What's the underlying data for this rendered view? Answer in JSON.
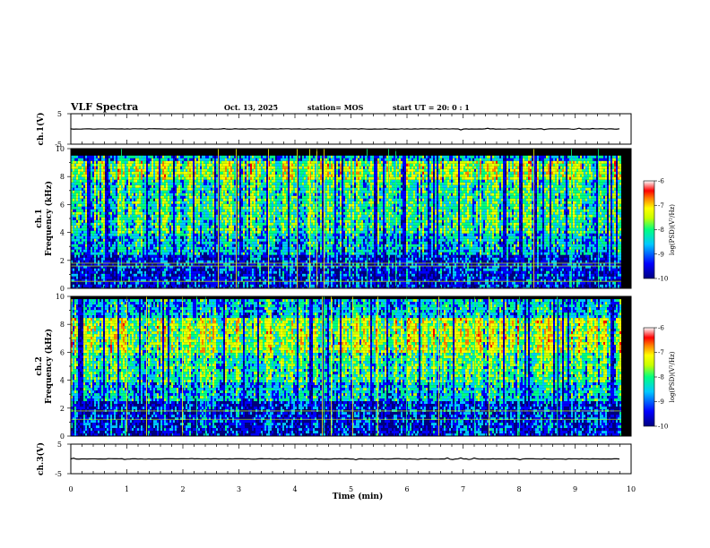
{
  "header": {
    "title": "VLF Spectra",
    "date": "Oct. 13, 2025",
    "station": "station= MOS",
    "start_ut": "start  UT  =   20: 0   : 1"
  },
  "chart_data": [
    {
      "type": "line",
      "panel": "ch1-voltage",
      "ylabel": "ch.1(V)",
      "ylim": [
        -5,
        5
      ],
      "yticks": [
        "5",
        "-5"
      ],
      "xlim": [
        0,
        10
      ],
      "level": 0,
      "series": [
        {
          "name": "ch.1",
          "x": [
            0,
            9.82
          ],
          "y": [
            0,
            0
          ]
        }
      ]
    },
    {
      "type": "heatmap",
      "panel": "ch1-spectrogram",
      "ylabel_line1": "ch.1",
      "ylabel_line2": "Frequency  (kHz)",
      "ylim": [
        0,
        10
      ],
      "yticks": [
        "10",
        "8",
        "6",
        "4",
        "2",
        "0"
      ],
      "xlim": [
        0,
        10
      ],
      "data_end_min": 9.82,
      "colorbar": {
        "label": "log(PSD)(V²/Hz)",
        "ticks": [
          "-6",
          "-7",
          "-8",
          "-9",
          "-10"
        ],
        "range": [
          -10,
          -6
        ]
      },
      "features": {
        "bright_band_khz": [
          7.8,
          9.2
        ],
        "cutoff_khz": 9.5,
        "horizontal_lines_khz": [
          0.5,
          1.6,
          1.8
        ]
      }
    },
    {
      "type": "heatmap",
      "panel": "ch2-spectrogram",
      "ylabel_line1": "ch.2",
      "ylabel_line2": "Frequency  (kHz)",
      "ylim": [
        0,
        10
      ],
      "yticks": [
        "10",
        "8",
        "6",
        "4",
        "2",
        "0"
      ],
      "xlim": [
        0,
        10
      ],
      "data_end_min": 9.82,
      "colorbar": {
        "label": "log(PSD)(V²/Hz)",
        "ticks": [
          "-6",
          "-7",
          "-8",
          "-9",
          "-10"
        ],
        "range": [
          -10,
          -6
        ]
      },
      "features": {
        "bright_band_khz": [
          6.0,
          8.5
        ],
        "cutoff_khz": 9.8,
        "horizontal_lines_khz": [
          1.2,
          1.8
        ]
      }
    },
    {
      "type": "line",
      "panel": "ch3-voltage",
      "ylabel": "ch.3(V)",
      "ylim": [
        -5,
        5
      ],
      "yticks": [
        "5",
        "-5"
      ],
      "xlim": [
        0,
        10
      ],
      "level": 0,
      "series": [
        {
          "name": "ch.3",
          "x": [
            0,
            9.82
          ],
          "y": [
            0,
            0
          ]
        }
      ]
    }
  ],
  "xaxis": {
    "label": "Time  (min)",
    "ticks": [
      "0",
      "1",
      "2",
      "3",
      "4",
      "5",
      "6",
      "7",
      "8",
      "9",
      "10"
    ]
  },
  "colors": {
    "colormap": [
      "#000080",
      "#0000ff",
      "#00c8ff",
      "#00ff80",
      "#c8ff00",
      "#ffff00",
      "#ff8000",
      "#ff0000",
      "#ffffff"
    ],
    "trace": "#000000",
    "frame": "#000000"
  }
}
